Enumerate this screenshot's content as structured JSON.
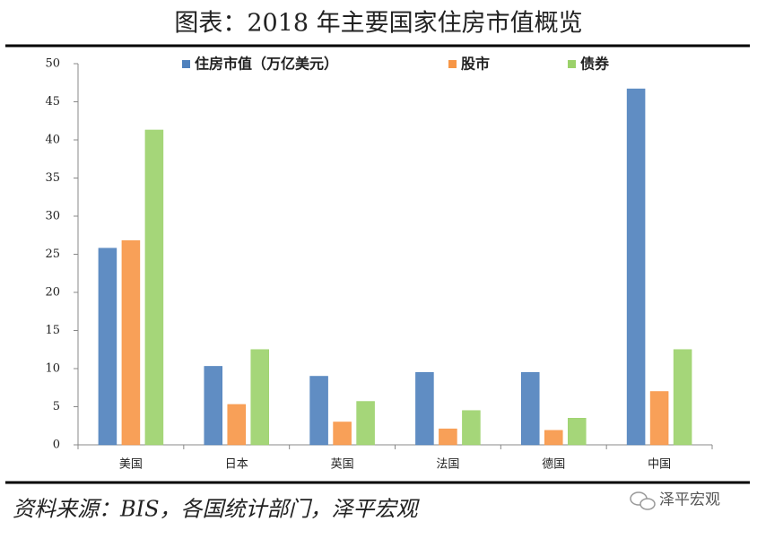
{
  "chart_data": {
    "type": "bar",
    "title": "图表：2018 年主要国家住房市值概览",
    "categories": [
      "美国",
      "日本",
      "英国",
      "法国",
      "德国",
      "中国"
    ],
    "series": [
      {
        "name": "住房市值（万亿美元）",
        "color": "#4f81bd",
        "values": [
          25.8,
          10.3,
          9.0,
          9.5,
          9.5,
          46.7
        ]
      },
      {
        "name": "股市",
        "color": "#f79646",
        "values": [
          26.8,
          5.3,
          3.0,
          2.1,
          1.9,
          7.0
        ]
      },
      {
        "name": "债券",
        "color": "#9bd16a",
        "values": [
          41.3,
          12.5,
          5.7,
          4.5,
          3.5,
          12.5
        ]
      }
    ],
    "ylim": [
      0,
      50
    ],
    "yticks": [
      0,
      5,
      10,
      15,
      20,
      25,
      30,
      35,
      40,
      45,
      50
    ],
    "grid": false,
    "legend": "top"
  },
  "source": "资料来源：BIS，各国统计部门，泽平宏观",
  "watermark": "泽平宏观"
}
